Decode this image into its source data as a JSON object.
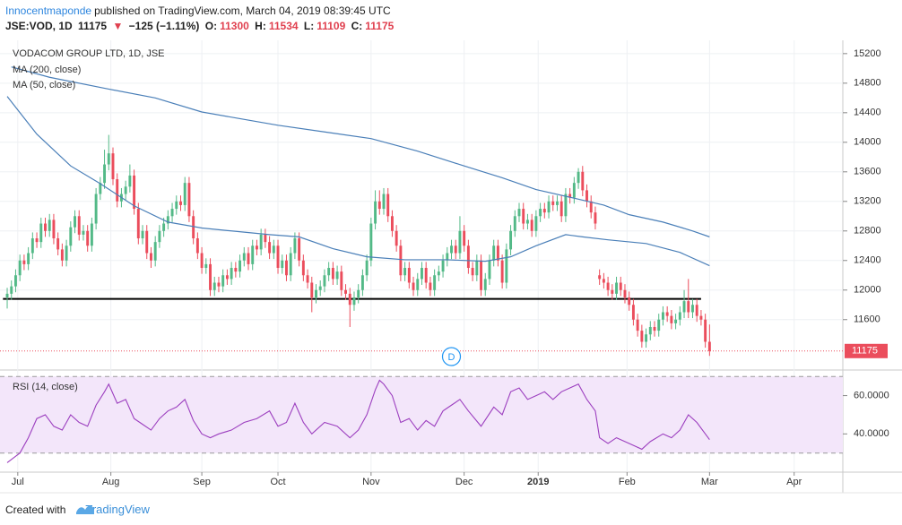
{
  "header": {
    "author": "Innocentmaponde",
    "published": "published on TradingView.com, March 04, 2019 08:39:45 UTC",
    "symbol": "JSE:VOD, 1D",
    "arrow": "▼",
    "change": "−125 (−1.11%)",
    "ohlc_labels": [
      "O:",
      "H:",
      "L:",
      "C:"
    ]
  },
  "chart_data": [
    {
      "type": "candlestick",
      "title": "VODACOM GROUP LTD, 1D, JSE",
      "up_color": "#53b987",
      "down_color": "#eb4d5c",
      "open": [
        11900,
        11950,
        12050,
        12200,
        12400,
        12350,
        12500,
        12700,
        12650,
        12900,
        12800,
        12950,
        12700,
        12550,
        12400,
        12600,
        12850,
        13000,
        12750,
        12800,
        12600,
        12900,
        13300,
        13450,
        13700,
        13850,
        13500,
        13200,
        13300,
        13400,
        13550,
        13100,
        12700,
        12800,
        12500,
        12400,
        12650,
        12800,
        12900,
        13000,
        13100,
        13200,
        13150,
        13450,
        13000,
        12700,
        12500,
        12300,
        12350,
        12000,
        12100,
        12050,
        12200,
        12150,
        12300,
        12250,
        12400,
        12500,
        12350,
        12600,
        12550,
        12750,
        12650,
        12500,
        12600,
        12300,
        12400,
        12200,
        12500,
        12700,
        12400,
        12200,
        12100,
        11900,
        12000,
        12050,
        12200,
        12300,
        12150,
        12250,
        12000,
        11950,
        11800,
        11900,
        12000,
        12200,
        12400,
        12900,
        13200,
        13100,
        13300,
        13000,
        12800,
        12600,
        12200,
        12300,
        12100,
        12000,
        12150,
        12300,
        12100,
        12000,
        12200,
        12250,
        12400,
        12500,
        12600,
        12500,
        12800,
        12600,
        12300,
        12200,
        12400,
        12000,
        12150,
        12400,
        12600,
        12400,
        12100,
        12550,
        12800,
        13000,
        13100,
        12900,
        12950,
        12800,
        13000,
        13100,
        13050,
        13200,
        13150,
        13200,
        13000,
        13300,
        13250,
        13450,
        13600,
        13350,
        13200,
        13050,
        12200,
        12150,
        12100,
        12000,
        11950,
        12100,
        12000,
        11900,
        11800,
        11600,
        11450,
        11300,
        11400,
        11500,
        11450,
        11600,
        11700,
        11650,
        11550,
        11600,
        11700,
        11850,
        11700,
        11800,
        11650,
        11600,
        11300
      ],
      "high": [
        12030,
        12130,
        12280,
        12480,
        12480,
        12580,
        12780,
        12780,
        12980,
        12980,
        13030,
        13030,
        12780,
        12630,
        12680,
        12930,
        13080,
        13080,
        12880,
        12880,
        12980,
        13380,
        13530,
        13900,
        14100,
        13930,
        13580,
        13380,
        13480,
        13700,
        13630,
        13180,
        12880,
        12880,
        12580,
        12730,
        12880,
        12980,
        13080,
        13180,
        13280,
        13280,
        13530,
        13530,
        13080,
        12780,
        12580,
        12430,
        12430,
        12180,
        12180,
        12280,
        12280,
        12380,
        12380,
        12480,
        12580,
        12580,
        12680,
        12680,
        12830,
        12830,
        12730,
        12680,
        12680,
        12480,
        12480,
        12580,
        12780,
        12780,
        12480,
        12280,
        12180,
        12080,
        12130,
        12280,
        12380,
        12380,
        12330,
        12330,
        12080,
        12030,
        11980,
        12080,
        12280,
        12480,
        12980,
        13350,
        13350,
        13380,
        13380,
        13080,
        12880,
        12680,
        12380,
        12380,
        12180,
        12230,
        12380,
        12380,
        12180,
        12280,
        12330,
        12480,
        12580,
        12680,
        12680,
        13000,
        12880,
        12680,
        12380,
        12480,
        12480,
        12230,
        12480,
        12680,
        12680,
        12480,
        12630,
        12880,
        13080,
        13180,
        13180,
        13030,
        13030,
        13080,
        13180,
        13180,
        13280,
        13280,
        13280,
        13280,
        13380,
        13380,
        13530,
        13650,
        13680,
        13430,
        13280,
        13130,
        12280,
        12230,
        12180,
        12080,
        12180,
        12180,
        12080,
        11980,
        11880,
        11680,
        11530,
        11480,
        11580,
        11580,
        11680,
        11780,
        11780,
        11730,
        11680,
        11780,
        12000,
        12150,
        11880,
        11880,
        11730,
        11680,
        11534
      ],
      "low": [
        11750,
        11870,
        11970,
        12120,
        12270,
        12270,
        12420,
        12570,
        12570,
        12720,
        12720,
        12620,
        12470,
        12320,
        12320,
        12520,
        12770,
        12670,
        12670,
        12520,
        12520,
        12820,
        13220,
        13370,
        13620,
        13420,
        13120,
        13120,
        13220,
        13320,
        13020,
        12620,
        12620,
        12420,
        12300,
        12320,
        12570,
        12720,
        12820,
        12920,
        13020,
        13070,
        13070,
        12920,
        12620,
        12420,
        12220,
        12220,
        11920,
        11920,
        11970,
        11970,
        12070,
        12070,
        12170,
        12170,
        12320,
        12270,
        12270,
        12470,
        12470,
        12570,
        12420,
        12420,
        12220,
        12220,
        12120,
        12120,
        12420,
        12320,
        12120,
        12020,
        11700,
        11820,
        11920,
        11970,
        12120,
        12070,
        12070,
        11920,
        11870,
        11500,
        11720,
        11820,
        11920,
        12120,
        12320,
        12820,
        13020,
        13020,
        12920,
        12720,
        12520,
        12120,
        12120,
        12020,
        11920,
        11920,
        12070,
        12020,
        11920,
        11920,
        12120,
        12170,
        12320,
        12420,
        12420,
        12420,
        12520,
        12220,
        12120,
        12120,
        11920,
        11920,
        12070,
        12320,
        12320,
        12020,
        12020,
        12470,
        12720,
        12920,
        12820,
        12820,
        12720,
        12720,
        12920,
        12970,
        12970,
        13070,
        13070,
        12920,
        12920,
        13170,
        13170,
        13370,
        13270,
        13120,
        12970,
        12820,
        12070,
        12020,
        11920,
        11870,
        11870,
        11920,
        11820,
        11720,
        11520,
        11370,
        11220,
        11220,
        11320,
        11370,
        11370,
        11520,
        11570,
        11470,
        11470,
        11520,
        11620,
        11620,
        11620,
        11570,
        11520,
        11220,
        11109
      ],
      "close": [
        11950,
        12050,
        12200,
        12400,
        12350,
        12500,
        12700,
        12650,
        12900,
        12800,
        12950,
        12700,
        12550,
        12400,
        12600,
        12850,
        13000,
        12750,
        12800,
        12600,
        12900,
        13300,
        13450,
        13700,
        13850,
        13500,
        13200,
        13300,
        13400,
        13550,
        13100,
        12700,
        12800,
        12500,
        12400,
        12650,
        12800,
        12900,
        13000,
        13100,
        13200,
        13150,
        13450,
        13000,
        12700,
        12500,
        12300,
        12350,
        12000,
        12100,
        12050,
        12200,
        12150,
        12300,
        12250,
        12400,
        12500,
        12350,
        12600,
        12550,
        12750,
        12650,
        12500,
        12600,
        12300,
        12400,
        12200,
        12500,
        12700,
        12400,
        12200,
        12100,
        11900,
        12000,
        12050,
        12200,
        12300,
        12150,
        12250,
        12000,
        11950,
        11800,
        11900,
        12000,
        12200,
        12400,
        12900,
        13200,
        13100,
        13300,
        13000,
        12800,
        12600,
        12200,
        12300,
        12100,
        12000,
        12150,
        12300,
        12100,
        12000,
        12200,
        12250,
        12400,
        12500,
        12600,
        12500,
        12800,
        12600,
        12300,
        12200,
        12400,
        12000,
        12150,
        12400,
        12600,
        12400,
        12100,
        12550,
        12800,
        13000,
        13100,
        12900,
        12950,
        12800,
        13000,
        13100,
        13050,
        13200,
        13150,
        13200,
        13000,
        13300,
        13250,
        13450,
        13600,
        13350,
        13200,
        13050,
        12900,
        12150,
        12100,
        12000,
        11950,
        12100,
        12000,
        11900,
        11800,
        11600,
        11450,
        11300,
        11400,
        11500,
        11450,
        11600,
        11700,
        11650,
        11550,
        11600,
        11700,
        11850,
        11700,
        11800,
        11650,
        11600,
        11300,
        11175
      ],
      "series": [
        {
          "name": "MA (200, close)",
          "color": "#4a7fb8",
          "x": [
            1,
            10,
            24,
            35,
            46,
            55,
            64,
            75,
            86,
            97,
            108,
            117,
            125,
            135,
            141,
            147,
            155,
            162,
            166
          ],
          "values": [
            15020,
            14880,
            14720,
            14600,
            14410,
            14320,
            14230,
            14140,
            14050,
            13880,
            13680,
            13520,
            13360,
            13230,
            13150,
            13020,
            12920,
            12800,
            12720
          ]
        },
        {
          "name": "MA (50, close)",
          "color": "#4a7fb8",
          "x": [
            0,
            7,
            15,
            22,
            30,
            38,
            46,
            53,
            62,
            69,
            77,
            85,
            94,
            104,
            113,
            119,
            125,
            132,
            136,
            142,
            151,
            159,
            166
          ],
          "values": [
            14620,
            14110,
            13680,
            13440,
            13140,
            12920,
            12840,
            12800,
            12750,
            12720,
            12560,
            12450,
            12410,
            12410,
            12390,
            12450,
            12600,
            12750,
            12720,
            12680,
            12630,
            12510,
            12330
          ]
        }
      ],
      "horizontal_line": {
        "value": 11880,
        "from": -1,
        "to": 164,
        "color": "#000000"
      },
      "last_price_color": "#eb4d5c",
      "events": [
        {
          "label": "D",
          "x": 105
        }
      ],
      "xlim": [
        -1.7,
        197.5
      ],
      "xticks": [
        {
          "value": 2.5,
          "label": "Jul"
        },
        {
          "value": 24.5,
          "label": "Aug"
        },
        {
          "value": 46,
          "label": "Sep"
        },
        {
          "value": 64,
          "label": "Oct"
        },
        {
          "value": 86,
          "label": "Nov"
        },
        {
          "value": 108,
          "label": "Dec"
        },
        {
          "value": 125.5,
          "label": "2019"
        },
        {
          "value": 146.5,
          "label": "Feb"
        },
        {
          "value": 166,
          "label": "Mar"
        },
        {
          "value": 186,
          "label": "Apr"
        }
      ],
      "ylim": [
        10930,
        15380
      ],
      "yticks": [
        11600,
        12000,
        12400,
        12800,
        13200,
        13600,
        14000,
        14400,
        14800,
        15200
      ],
      "grid": true
    },
    {
      "type": "line",
      "title": "RSI (14, close)",
      "series": [
        {
          "color": "#9c3fbf",
          "x": [
            0,
            3,
            5,
            7,
            9,
            11,
            13,
            15,
            17,
            19,
            21,
            23,
            24,
            26,
            28,
            30,
            32,
            34,
            36,
            38,
            40,
            42,
            44,
            46,
            48,
            50,
            53,
            56,
            59,
            62,
            64,
            66,
            68,
            70,
            72,
            75,
            78,
            81,
            83,
            85,
            87,
            88,
            89,
            91,
            93,
            95,
            97,
            99,
            101,
            103,
            105,
            107,
            109,
            112,
            115,
            117,
            119,
            121,
            123,
            125,
            127,
            129,
            131,
            133,
            135,
            137,
            139,
            140,
            142,
            144,
            146,
            148,
            150,
            152,
            155,
            157,
            159,
            161,
            163,
            165,
            166
          ],
          "values": [
            25,
            30,
            38,
            48,
            50,
            44,
            42,
            50,
            46,
            44,
            55,
            62,
            66,
            56,
            58,
            48,
            45,
            42,
            48,
            52,
            54,
            58,
            47,
            40,
            38,
            40,
            42,
            46,
            48,
            52,
            44,
            46,
            56,
            46,
            40,
            46,
            44,
            38,
            42,
            50,
            63,
            68,
            66,
            60,
            46,
            48,
            42,
            47,
            44,
            52,
            55,
            58,
            52,
            44,
            54,
            50,
            62,
            64,
            58,
            60,
            62,
            58,
            62,
            64,
            66,
            58,
            52,
            38,
            35,
            38,
            36,
            34,
            32,
            36,
            40,
            38,
            42,
            50,
            46,
            40,
            37
          ]
        }
      ],
      "bands": [
        30,
        70
      ],
      "band_color": "#f3e6fa",
      "xlim": [
        -1.7,
        197.5
      ],
      "ylim": [
        20.5,
        72.9
      ],
      "yticks": [
        {
          "value": 40,
          "label": "40.0000"
        },
        {
          "value": 60,
          "label": "60.0000"
        }
      ]
    }
  ],
  "footer": {
    "created": "Created with",
    "brand": "TradingView"
  }
}
